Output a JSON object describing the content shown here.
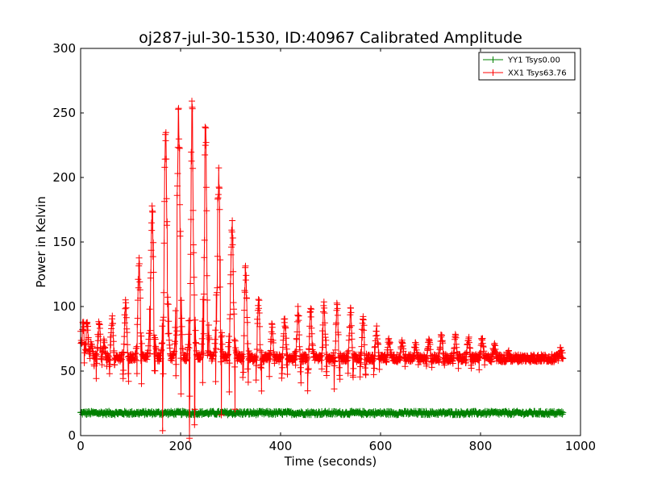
{
  "chart_data": {
    "type": "line",
    "title": "oj287-jul-30-1530, ID:40967 Calibrated Amplitude",
    "xlabel": "Time (seconds)",
    "ylabel": "Power in Kelvin",
    "xlim": [
      0,
      1000
    ],
    "ylim": [
      0,
      300
    ],
    "xticks": [
      0,
      200,
      400,
      600,
      800,
      1000
    ],
    "yticks": [
      0,
      50,
      100,
      150,
      200,
      250,
      300
    ],
    "grid": false,
    "legend_position": "top-right",
    "markers": "plus",
    "series": [
      {
        "name": "YY1 Tsys0.00",
        "color": "#008000",
        "x_start": 0,
        "x_end": 965,
        "baseline": 17.5,
        "noise": 1.5
      },
      {
        "name": "XX1 Tsys63.76",
        "color": "#ff0000",
        "x_start": 0,
        "x_end": 965,
        "baseline": 60,
        "noise": 3,
        "start_value": 86,
        "peaks": [
          {
            "x": 5,
            "peak": 88
          },
          {
            "x": 13,
            "peak": 90
          },
          {
            "x": 22,
            "peak": 72
          },
          {
            "x": 37,
            "peak": 89
          },
          {
            "x": 47,
            "peak": 74
          },
          {
            "x": 63,
            "peak": 92
          },
          {
            "x": 90,
            "peak": 105
          },
          {
            "x": 117,
            "peak": 137
          },
          {
            "x": 143,
            "peak": 183
          },
          {
            "x": 170,
            "peak": 239
          },
          {
            "x": 196,
            "peak": 260
          },
          {
            "x": 223,
            "peak": 262
          },
          {
            "x": 250,
            "peak": 247
          },
          {
            "x": 276,
            "peak": 205
          },
          {
            "x": 303,
            "peak": 166
          },
          {
            "x": 330,
            "peak": 135
          },
          {
            "x": 356,
            "peak": 108
          },
          {
            "x": 383,
            "peak": 86
          },
          {
            "x": 408,
            "peak": 90
          },
          {
            "x": 435,
            "peak": 98
          },
          {
            "x": 460,
            "peak": 102
          },
          {
            "x": 487,
            "peak": 106
          },
          {
            "x": 513,
            "peak": 105
          },
          {
            "x": 540,
            "peak": 100
          },
          {
            "x": 565,
            "peak": 93
          },
          {
            "x": 592,
            "peak": 84
          },
          {
            "x": 617,
            "peak": 74
          },
          {
            "x": 643,
            "peak": 72
          },
          {
            "x": 670,
            "peak": 70
          },
          {
            "x": 697,
            "peak": 74
          },
          {
            "x": 722,
            "peak": 78
          },
          {
            "x": 750,
            "peak": 79
          },
          {
            "x": 776,
            "peak": 78
          },
          {
            "x": 803,
            "peak": 75
          },
          {
            "x": 828,
            "peak": 69
          },
          {
            "x": 855,
            "peak": 64
          },
          {
            "x": 960,
            "peak": 66
          }
        ]
      }
    ]
  }
}
